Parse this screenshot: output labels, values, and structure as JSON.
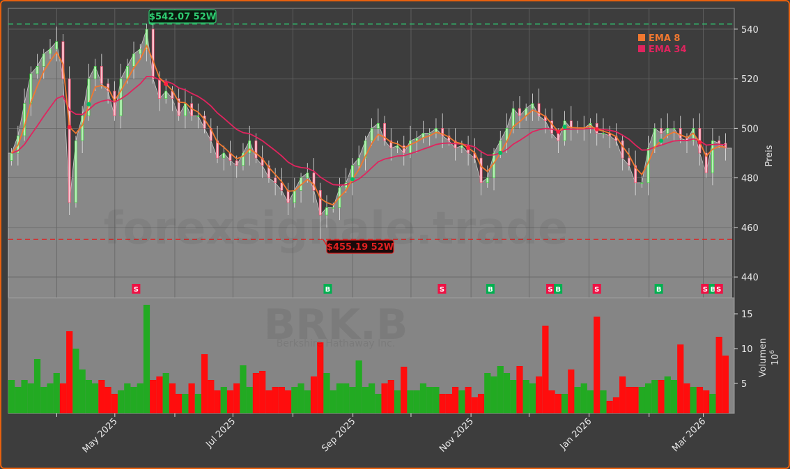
{
  "chart_data": [
    {
      "type": "candlestick",
      "ticker": "BRK.B",
      "company": "Berkshire Hathaway Inc.",
      "watermark": "forexsignale.trade",
      "ylabel": "Preis",
      "ylim": [
        431.6,
        548.4
      ],
      "yticks": [
        440,
        460,
        480,
        500,
        520,
        540
      ],
      "xlim": [
        "2025-03-07",
        "2026-03-17"
      ],
      "xticks": [
        {
          "date": "2025-04-01",
          "label": ""
        },
        {
          "date": "2025-05-01",
          "label": "May 2025"
        },
        {
          "date": "2025-06-01",
          "label": ""
        },
        {
          "date": "2025-07-01",
          "label": "Jul 2025"
        },
        {
          "date": "2025-08-01",
          "label": ""
        },
        {
          "date": "2025-09-01",
          "label": "Sep 2025"
        },
        {
          "date": "2025-10-01",
          "label": ""
        },
        {
          "date": "2025-11-01",
          "label": "Nov 2025"
        },
        {
          "date": "2025-12-01",
          "label": ""
        },
        {
          "date": "2026-01-01",
          "label": "Jan 2026"
        },
        {
          "date": "2026-02-01",
          "label": ""
        },
        {
          "date": "2026-03-01",
          "label": "Mar 2026"
        }
      ],
      "grid": true,
      "close": [
        490,
        497,
        510,
        522,
        525,
        530,
        532,
        535,
        520,
        470,
        495,
        505,
        520,
        525,
        518,
        515,
        505,
        520,
        525,
        530,
        532,
        540,
        520,
        512,
        515,
        512,
        505,
        510,
        505,
        505,
        500,
        495,
        488,
        490,
        487,
        485,
        490,
        495,
        488,
        485,
        480,
        478,
        475,
        470,
        475,
        480,
        482,
        475,
        465,
        468,
        468,
        476,
        478,
        485,
        488,
        495,
        500,
        502,
        495,
        492,
        493,
        490,
        495,
        496,
        498,
        498,
        500,
        497,
        495,
        492,
        493,
        490,
        488,
        478,
        480,
        490,
        495,
        500,
        508,
        505,
        508,
        510,
        505,
        503,
        498,
        495,
        503,
        500,
        500,
        500,
        502,
        498,
        498,
        497,
        495,
        488,
        485,
        478,
        478,
        492,
        500,
        498,
        500,
        500,
        496,
        495,
        500,
        490,
        482,
        495,
        494,
        492
      ],
      "legend": {
        "placement": "top-right",
        "entries": [
          {
            "label": "EMA 8",
            "color": "#f07830"
          },
          {
            "label": "EMA 34",
            "color": "#e0245e"
          }
        ]
      },
      "annotations": {
        "high_52w": {
          "value": 542.07,
          "label": "$542.07 52W",
          "color": "#2ecc71"
        },
        "low_52w": {
          "value": 455.19,
          "label": "$455.19 52W",
          "color": "#e02020"
        }
      },
      "signals": [
        {
          "date": "2025-05-12",
          "type": "S"
        },
        {
          "date": "2025-08-19",
          "type": "B"
        },
        {
          "date": "2025-10-17",
          "type": "S"
        },
        {
          "date": "2025-11-11",
          "type": "B"
        },
        {
          "date": "2025-12-12",
          "type": "S"
        },
        {
          "date": "2025-12-16",
          "type": "B"
        },
        {
          "date": "2026-01-05",
          "type": "S"
        },
        {
          "date": "2026-02-06",
          "type": "B"
        },
        {
          "date": "2026-03-02",
          "type": "S"
        },
        {
          "date": "2026-03-06",
          "type": "B"
        },
        {
          "date": "2026-03-09",
          "type": "S"
        }
      ],
      "colors": {
        "up": "#22aa22",
        "down": "#ff0d0d",
        "buy": "#00b050",
        "sell": "#ee1144",
        "area": "#888888"
      }
    },
    {
      "type": "bar",
      "ylabel": "Volumen",
      "yunit": "10",
      "yunit_exp": "6",
      "ylim": [
        0.7,
        17.3
      ],
      "yticks": [
        5,
        10,
        15
      ],
      "values": [
        5.5,
        4.5,
        5.5,
        5,
        8.5,
        4.5,
        5,
        6.5,
        5,
        12.5,
        10,
        7,
        5.5,
        5,
        5.5,
        4.5,
        3.5,
        4,
        5,
        4.5,
        5,
        16.3,
        5.5,
        6,
        6.5,
        5,
        3.5,
        3.5,
        5,
        3.5,
        9.2,
        5.5,
        4,
        4.5,
        4,
        5,
        7.6,
        4.5,
        6.5,
        6.8,
        4,
        4.5,
        4.5,
        4,
        4.5,
        5,
        4,
        6,
        10.9,
        6.5,
        4,
        5,
        5,
        4.5,
        8.3,
        4.5,
        5,
        3.5,
        5,
        5.5,
        4,
        7.4,
        4,
        4,
        5,
        4.5,
        4.5,
        3.5,
        3.5,
        4.5,
        4,
        4.5,
        3,
        3.5,
        6.5,
        6,
        7.5,
        6.5,
        5.5,
        7.5,
        5.5,
        5,
        6,
        13.3,
        4,
        3.5,
        3.5,
        7,
        4.5,
        5,
        4,
        14.6,
        4,
        2.5,
        3,
        6,
        4.5,
        4.5,
        4.5,
        5,
        5.5,
        5.5,
        6,
        5.5,
        10.6,
        5,
        4.5,
        4.5,
        4,
        3.5,
        11.7,
        9
      ]
    }
  ]
}
